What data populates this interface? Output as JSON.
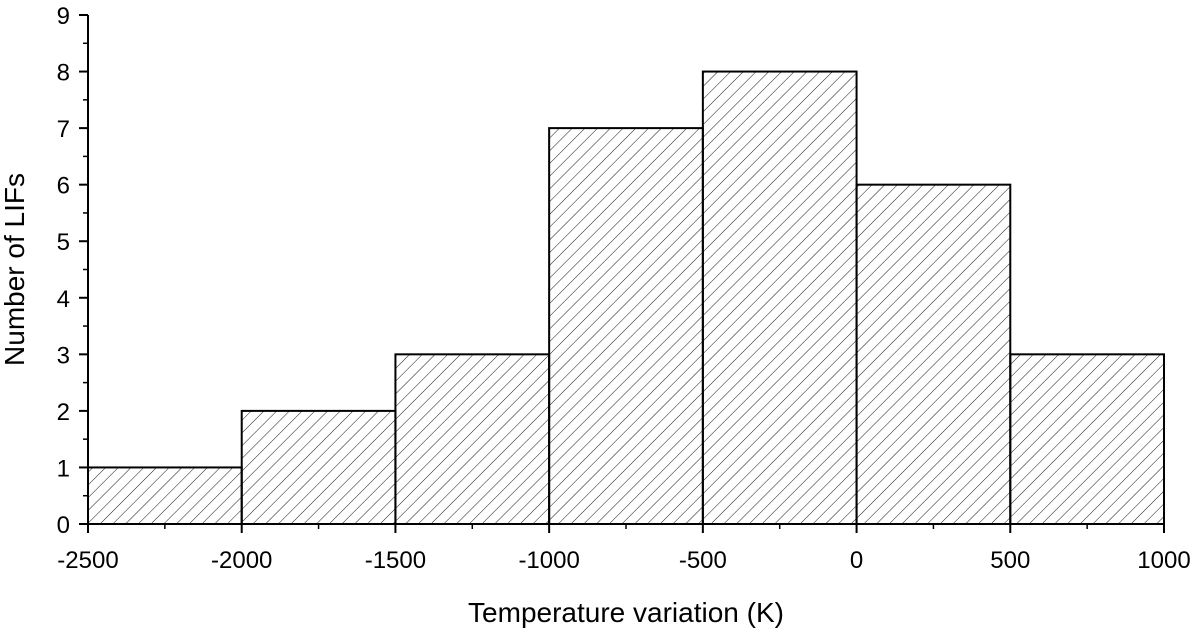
{
  "chart_data": {
    "type": "bar",
    "title": "",
    "xlabel": "Temperature variation (K)",
    "ylabel": "Number of LIFs",
    "xlim": [
      -2500,
      1000
    ],
    "ylim": [
      0,
      9
    ],
    "bin_edges": [
      -2500,
      -2000,
      -1500,
      -1000,
      -500,
      0,
      500,
      1000
    ],
    "categories": [
      "-2500 to -2000",
      "-2000 to -1500",
      "-1500 to -1000",
      "-1000 to -500",
      "-500 to 0",
      "0 to 500",
      "500 to 1000"
    ],
    "values": [
      1,
      2,
      3,
      7,
      8,
      6,
      3
    ],
    "x_ticks": [
      -2500,
      -2000,
      -1500,
      -1000,
      -500,
      0,
      500,
      1000
    ],
    "x_tick_labels": [
      "-2500",
      "-2000",
      "-1500",
      "-1000",
      "-500",
      "0",
      "500",
      "1000"
    ],
    "y_ticks": [
      0,
      1,
      2,
      3,
      4,
      5,
      6,
      7,
      8,
      9
    ],
    "y_tick_labels": [
      "0",
      "1",
      "2",
      "3",
      "4",
      "5",
      "6",
      "7",
      "8",
      "9"
    ],
    "fill": "diagonal hatch",
    "grid": false,
    "legend": "none",
    "colors": {
      "bar_stroke": "#000000",
      "hatch": "#000000",
      "background": "#ffffff"
    }
  }
}
